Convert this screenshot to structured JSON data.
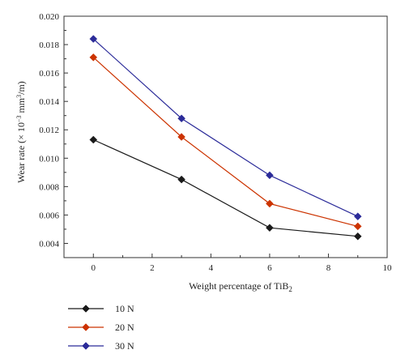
{
  "chart_data": {
    "type": "line",
    "xlabel_main": "Weight percentage of TiB",
    "xlabel_sub": "2",
    "ylabel_prefix": "Wear rate (× 10",
    "ylabel_exp1": "−3",
    "ylabel_mid": " mm",
    "ylabel_exp2": "3",
    "ylabel_suffix": "/m)",
    "xlim": [
      -1,
      10
    ],
    "ylim": [
      0.003,
      0.02
    ],
    "x_ticks": [
      0,
      2,
      4,
      6,
      8,
      10
    ],
    "y_ticks": [
      0.004,
      0.006,
      0.008,
      0.01,
      0.012,
      0.014,
      0.016,
      0.018,
      0.02
    ],
    "y_tick_labels": [
      "0.004",
      "0.006",
      "0.008",
      "0.010",
      "0.012",
      "0.014",
      "0.016",
      "0.018",
      "0.020"
    ],
    "x": [
      0,
      3,
      6,
      9
    ],
    "legend_position": "bottom-left, below plot",
    "series": [
      {
        "name": "10 N",
        "color": "#1a1a1a",
        "marker": "diamond",
        "values": [
          0.0113,
          0.0085,
          0.0051,
          0.0045
        ]
      },
      {
        "name": "20 N",
        "color": "#cc3300",
        "marker": "diamond",
        "values": [
          0.0171,
          0.0115,
          0.0068,
          0.0052
        ]
      },
      {
        "name": "30 N",
        "color": "#2b2b99",
        "marker": "diamond",
        "values": [
          0.0184,
          0.0128,
          0.0088,
          0.0059
        ]
      }
    ]
  }
}
